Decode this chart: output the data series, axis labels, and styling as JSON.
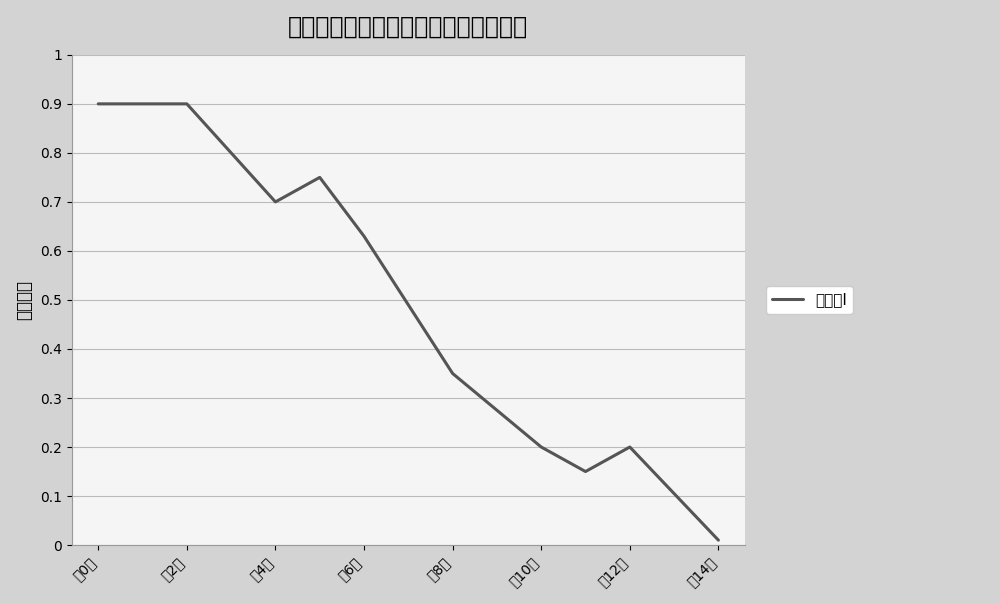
{
  "title": "稀释液对常温保存绵羊精子活率的影响",
  "ylabel": "精子活率",
  "x_labels": [
    "第0天",
    "第2天",
    "第4天",
    "第6天",
    "第8天",
    "第10天",
    "第12天",
    "第14天"
  ],
  "series": [
    {
      "name": "稀释液I",
      "x": [
        0,
        1,
        2,
        2.5,
        3,
        4,
        5,
        5.5,
        6,
        7
      ],
      "values": [
        0.9,
        0.9,
        0.7,
        0.75,
        0.63,
        0.35,
        0.2,
        0.15,
        0.2,
        0.01
      ],
      "color": "#555555"
    }
  ],
  "x_tick_positions": [
    0,
    1,
    2,
    3,
    4,
    5,
    6,
    7
  ],
  "ylim": [
    0,
    1.0
  ],
  "yticks": [
    0,
    0.1,
    0.2,
    0.3,
    0.4,
    0.5,
    0.6,
    0.7,
    0.8,
    0.9,
    1
  ],
  "background_color": "#d3d3d3",
  "plot_background": "#f5f5f5",
  "title_fontsize": 17,
  "label_fontsize": 12,
  "tick_fontsize": 10,
  "legend_fontsize": 11,
  "grid_color": "#bbbbbb",
  "line_width": 2.2
}
